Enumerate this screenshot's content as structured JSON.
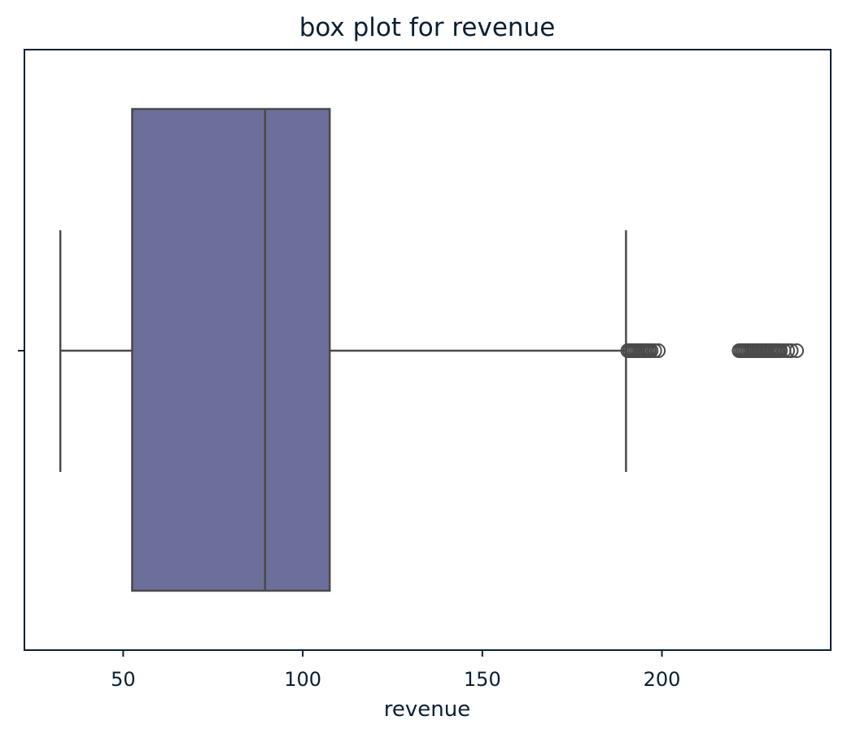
{
  "chart_data": {
    "type": "box",
    "title": "box plot for revenue",
    "xlabel": "revenue",
    "ylabel": "",
    "xlim": [
      22.5,
      247
    ],
    "xticks": [
      50,
      100,
      150,
      200
    ],
    "xtick_labels": [
      "50",
      "100",
      "150",
      "200"
    ],
    "grid": false,
    "series": [
      {
        "whisker_low": 32.5,
        "q1": 52.5,
        "median": 89.5,
        "q3": 107.5,
        "whisker_high": 190,
        "outliers": [
          190.5,
          191,
          191.5,
          192,
          192.5,
          193,
          193.5,
          194,
          194.5,
          195,
          195.5,
          196,
          196.5,
          197,
          198,
          199,
          221.5,
          222,
          222.5,
          223,
          223.5,
          224,
          224.5,
          225,
          225.5,
          226,
          226.5,
          227,
          227.5,
          228,
          228.5,
          229,
          229.5,
          230,
          230.5,
          231,
          231.5,
          232,
          232.5,
          233,
          234,
          235,
          236,
          237.5
        ]
      }
    ],
    "colors": {
      "box_fill": "#6c6f99",
      "line": "#4a4a4a",
      "frame": "#0b1f33",
      "text": "#0b1f33"
    }
  }
}
